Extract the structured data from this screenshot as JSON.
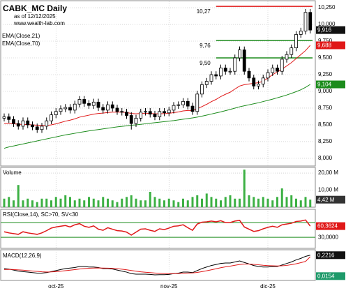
{
  "chart_data": [
    {
      "type": "candlestick",
      "title": "CABK_MC Daily",
      "subtitle": "as of 12/12/2025",
      "source": "www.wealth-lab.com",
      "open": [
        8.6,
        8.62,
        8.58,
        8.52,
        8.48,
        8.56,
        8.5,
        8.47,
        8.43,
        8.48,
        8.56,
        8.65,
        8.7,
        8.74,
        8.76,
        8.72,
        8.81,
        8.88,
        8.82,
        8.79,
        8.84,
        8.76,
        8.72,
        8.8,
        8.75,
        8.7,
        8.69,
        8.64,
        8.52,
        8.6,
        8.69,
        8.7,
        8.66,
        8.62,
        8.7,
        8.68,
        8.72,
        8.79,
        8.8,
        8.85,
        8.78,
        8.7,
        8.96,
        9.1,
        9.15,
        9.25,
        9.23,
        9.35,
        9.3,
        9.3,
        9.5,
        9.62,
        9.3,
        9.2,
        9.08,
        9.11,
        9.2,
        9.28,
        9.35,
        9.3,
        9.48,
        9.55,
        9.65,
        9.85,
        9.9,
        10.18
      ],
      "high": [
        8.67,
        8.67,
        8.63,
        8.57,
        8.61,
        8.61,
        8.55,
        8.52,
        8.53,
        8.61,
        8.7,
        8.75,
        8.79,
        8.81,
        8.81,
        8.86,
        8.93,
        8.93,
        8.87,
        8.89,
        8.89,
        8.81,
        8.85,
        8.85,
        8.8,
        8.75,
        8.74,
        8.69,
        8.65,
        8.74,
        8.75,
        8.75,
        8.71,
        8.75,
        8.75,
        8.77,
        8.84,
        8.85,
        8.9,
        8.9,
        8.83,
        9.01,
        9.15,
        9.2,
        9.3,
        9.3,
        9.4,
        9.4,
        9.35,
        9.55,
        9.67,
        9.67,
        9.35,
        9.25,
        9.16,
        9.25,
        9.33,
        9.4,
        9.4,
        9.53,
        9.6,
        9.7,
        9.9,
        9.95,
        10.23,
        10.23
      ],
      "low": [
        8.55,
        8.53,
        8.47,
        8.43,
        8.43,
        8.45,
        8.42,
        8.38,
        8.38,
        8.43,
        8.51,
        8.6,
        8.65,
        8.69,
        8.67,
        8.67,
        8.76,
        8.77,
        8.74,
        8.74,
        8.71,
        8.67,
        8.67,
        8.7,
        8.65,
        8.64,
        8.59,
        8.43,
        8.47,
        8.55,
        8.64,
        8.61,
        8.57,
        8.57,
        8.63,
        8.63,
        8.67,
        8.74,
        8.75,
        8.73,
        8.65,
        8.65,
        8.91,
        9.05,
        9.1,
        9.18,
        9.18,
        9.25,
        9.25,
        9.25,
        9.45,
        9.25,
        9.15,
        9.03,
        9.03,
        9.06,
        9.15,
        9.23,
        9.25,
        9.25,
        9.43,
        9.5,
        9.6,
        9.8,
        9.85,
        9.866
      ],
      "close": [
        8.62,
        8.58,
        8.52,
        8.48,
        8.56,
        8.5,
        8.47,
        8.43,
        8.48,
        8.56,
        8.65,
        8.7,
        8.74,
        8.76,
        8.72,
        8.81,
        8.88,
        8.82,
        8.79,
        8.84,
        8.76,
        8.72,
        8.8,
        8.75,
        8.7,
        8.69,
        8.64,
        8.52,
        8.6,
        8.69,
        8.7,
        8.66,
        8.62,
        8.7,
        8.68,
        8.72,
        8.79,
        8.8,
        8.85,
        8.78,
        8.7,
        8.96,
        9.1,
        9.15,
        9.25,
        9.23,
        9.35,
        9.3,
        9.3,
        9.5,
        9.62,
        9.3,
        9.2,
        9.08,
        9.11,
        9.2,
        9.28,
        9.35,
        9.3,
        9.48,
        9.55,
        9.65,
        9.85,
        9.9,
        10.18,
        9.916
      ],
      "close_last_label": "9,916",
      "series": [
        {
          "name": "EMA(Close,21)",
          "color": "#e01818",
          "last_label": "9,688",
          "values": [
            8.52,
            8.52,
            8.515,
            8.51,
            8.505,
            8.505,
            8.5,
            8.495,
            8.49,
            8.49,
            8.5,
            8.515,
            8.535,
            8.555,
            8.57,
            8.59,
            8.615,
            8.63,
            8.645,
            8.66,
            8.67,
            8.675,
            8.685,
            8.69,
            8.69,
            8.69,
            8.685,
            8.67,
            8.665,
            8.67,
            8.67,
            8.67,
            8.665,
            8.665,
            8.668,
            8.672,
            8.683,
            8.693,
            8.708,
            8.715,
            8.715,
            8.74,
            8.773,
            8.807,
            8.847,
            8.88,
            8.923,
            8.957,
            8.988,
            9.035,
            9.08,
            9.1,
            9.11,
            9.12,
            9.13,
            9.15,
            9.2,
            9.25,
            9.29,
            9.33,
            9.38,
            9.43,
            9.49,
            9.55,
            9.61,
            9.688
          ]
        },
        {
          "name": "EMA(Close,70)",
          "color": "#1c8c1c",
          "last_label": "9,104",
          "values": [
            8.15,
            8.17,
            8.185,
            8.2,
            8.215,
            8.23,
            8.245,
            8.26,
            8.275,
            8.29,
            8.305,
            8.32,
            8.335,
            8.35,
            8.362,
            8.374,
            8.386,
            8.398,
            8.41,
            8.42,
            8.43,
            8.44,
            8.45,
            8.46,
            8.47,
            8.478,
            8.486,
            8.494,
            8.5,
            8.508,
            8.516,
            8.524,
            8.532,
            8.54,
            8.548,
            8.556,
            8.564,
            8.574,
            8.584,
            8.594,
            8.604,
            8.616,
            8.63,
            8.646,
            8.662,
            8.678,
            8.694,
            8.712,
            8.73,
            8.75,
            8.77,
            8.785,
            8.8,
            8.815,
            8.83,
            8.848,
            8.866,
            8.884,
            8.904,
            8.924,
            8.946,
            8.97,
            8.996,
            9.024,
            9.06,
            9.104
          ]
        }
      ],
      "annotations": [
        {
          "label": "10,27",
          "value": 10.27,
          "color": "#e01818"
        },
        {
          "label": "9,76",
          "value": 9.76,
          "color": "#1c8c1c"
        },
        {
          "label": "9,50",
          "value": 9.5,
          "color": "#1c8c1c"
        }
      ],
      "ylim": [
        7.885,
        10.344
      ],
      "yticks": [
        {
          "value": 8.0,
          "label": "8,000"
        },
        {
          "value": 8.25,
          "label": "8,250"
        },
        {
          "value": 8.5,
          "label": "8,500"
        },
        {
          "value": 8.75,
          "label": "8,750"
        },
        {
          "value": 9.0,
          "label": "9,000"
        },
        {
          "value": 9.25,
          "label": "9,250"
        },
        {
          "value": 9.5,
          "label": "9,500"
        },
        {
          "value": 9.75,
          "label": "9,750"
        },
        {
          "value": 10.0,
          "label": "10,000"
        },
        {
          "value": 10.25,
          "label": "10,250"
        }
      ],
      "grid": true
    },
    {
      "type": "bar",
      "title": "Volume",
      "color": "#3cb043",
      "last_label": "4,42 M",
      "values": [
        5,
        6,
        4,
        13,
        4,
        5,
        4,
        3,
        5,
        5,
        4,
        6,
        5,
        7,
        6,
        4,
        5,
        4,
        6,
        5,
        4,
        6,
        5,
        4,
        3,
        5,
        6,
        7,
        5,
        4,
        4,
        9,
        6,
        5,
        4,
        5,
        4,
        3,
        5,
        4,
        6,
        7,
        5,
        8,
        6,
        5,
        4,
        6,
        7,
        5,
        5,
        22,
        7,
        6,
        5,
        6,
        5,
        4,
        6,
        11,
        6,
        7,
        5,
        4,
        6,
        4.42
      ],
      "ylim": [
        0,
        23.3
      ],
      "yticks": [
        {
          "value": 10,
          "label": "10,00 M"
        },
        {
          "value": 20,
          "label": "20,00 M"
        }
      ],
      "grid": true
    },
    {
      "type": "line",
      "title": "RSI(Close,14), SC>70, SV<30",
      "series": [
        {
          "color": "#e01818",
          "last_label": "60,3624",
          "values": [
            45,
            42,
            40,
            38,
            45,
            42,
            40,
            38,
            42,
            48,
            55,
            58,
            60,
            62,
            58,
            64,
            67,
            60,
            57,
            61,
            52,
            49,
            56,
            52,
            48,
            47,
            44,
            36,
            44,
            52,
            53,
            49,
            46,
            53,
            51,
            55,
            60,
            61,
            64,
            56,
            49,
            66,
            71,
            72,
            74,
            72,
            75,
            70,
            70,
            74,
            76,
            58,
            52,
            46,
            48,
            53,
            57,
            60,
            57,
            64,
            66,
            68,
            73,
            74,
            77,
            60.3624
          ]
        }
      ],
      "levels": [
        70,
        30
      ],
      "level_color": "#1c8c1c",
      "ylim": [
        0,
        106
      ],
      "yticks": [
        {
          "value": 30,
          "label": "30,0000"
        }
      ],
      "grid": true
    },
    {
      "type": "line",
      "title": "MACD(12,26,9)",
      "series": [
        {
          "color": "#000000",
          "last_label": "0,2216",
          "values": [
            0.09,
            0.085,
            0.075,
            0.065,
            0.06,
            0.055,
            0.05,
            0.045,
            0.045,
            0.05,
            0.06,
            0.07,
            0.08,
            0.09,
            0.095,
            0.1,
            0.11,
            0.11,
            0.105,
            0.105,
            0.1,
            0.09,
            0.09,
            0.085,
            0.075,
            0.065,
            0.055,
            0.04,
            0.035,
            0.035,
            0.035,
            0.032,
            0.028,
            0.03,
            0.03,
            0.032,
            0.04,
            0.045,
            0.055,
            0.055,
            0.05,
            0.07,
            0.09,
            0.105,
            0.12,
            0.13,
            0.14,
            0.145,
            0.145,
            0.155,
            0.165,
            0.15,
            0.135,
            0.12,
            0.11,
            0.105,
            0.105,
            0.11,
            0.11,
            0.125,
            0.14,
            0.155,
            0.175,
            0.19,
            0.21,
            0.2216
          ]
        },
        {
          "color": "#e01818",
          "values": [
            0.08,
            0.082,
            0.08,
            0.077,
            0.074,
            0.07,
            0.066,
            0.062,
            0.058,
            0.056,
            0.057,
            0.06,
            0.064,
            0.069,
            0.074,
            0.079,
            0.085,
            0.09,
            0.093,
            0.095,
            0.096,
            0.095,
            0.094,
            0.092,
            0.089,
            0.084,
            0.078,
            0.071,
            0.064,
            0.058,
            0.054,
            0.05,
            0.046,
            0.043,
            0.041,
            0.04,
            0.04,
            0.041,
            0.044,
            0.046,
            0.047,
            0.052,
            0.06,
            0.068,
            0.078,
            0.088,
            0.098,
            0.107,
            0.114,
            0.122,
            0.13,
            0.134,
            0.134,
            0.131,
            0.127,
            0.122,
            0.119,
            0.117,
            0.115,
            0.117,
            0.121,
            0.128,
            0.137,
            0.148,
            0.16,
            0.2062
          ]
        }
      ],
      "last_difference": 0.0154,
      "last_difference_label": "0,0154",
      "difference_color": "#1e9a6a",
      "ylim": [
        -0.027,
        0.275
      ],
      "categories": [
        null,
        null,
        null,
        null,
        null,
        null,
        null,
        null,
        null,
        null,
        null,
        "oct-25",
        null,
        null,
        null,
        null,
        null,
        null,
        null,
        null,
        null,
        null,
        null,
        null,
        null,
        null,
        null,
        null,
        null,
        null,
        null,
        null,
        null,
        null,
        null,
        "nov-25",
        null,
        null,
        null,
        null,
        null,
        null,
        null,
        null,
        null,
        null,
        null,
        null,
        null,
        null,
        null,
        null,
        null,
        null,
        null,
        null,
        "dic-25",
        null,
        null,
        null,
        null,
        null,
        null,
        null,
        null,
        null
      ]
    }
  ]
}
